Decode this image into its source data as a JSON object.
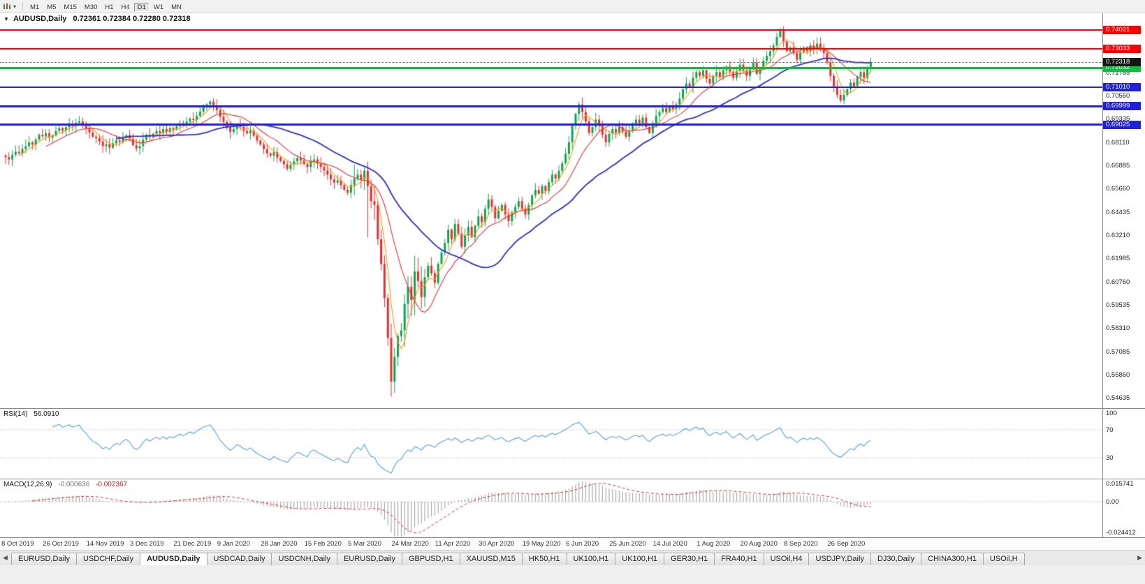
{
  "toolbar": {
    "timeframes": [
      "M1",
      "M5",
      "M15",
      "M30",
      "H1",
      "H4",
      "D1",
      "W1",
      "MN"
    ],
    "active_timeframe": "D1"
  },
  "chart": {
    "header": {
      "dropdown_caret": "▼",
      "symbol": "AUDUSD,Daily",
      "ohlc": "0.72361 0.72384 0.72280 0.72318"
    }
  },
  "chart_data": {
    "type": "candlestick",
    "symbol": "AUDUSD",
    "period": "Daily",
    "ohlc_display": {
      "open": "0.72361",
      "high": "0.72384",
      "low": "0.72280",
      "close": "0.72318"
    },
    "y_axis": {
      "max": 0.749,
      "min": 0.541,
      "ticks": [
        "0.73010",
        "0.71785",
        "0.70560",
        "0.69335",
        "0.68110",
        "0.66885",
        "0.65660",
        "0.64435",
        "0.63210",
        "0.61985",
        "0.60760",
        "0.59535",
        "0.58310",
        "0.57085",
        "0.55860",
        "0.54635"
      ]
    },
    "x_axis": {
      "labels": [
        {
          "text": "8 Oct 2019",
          "bar": 1
        },
        {
          "text": "26 Oct 2019",
          "bar": 14
        },
        {
          "text": "14 Nov 2019",
          "bar": 27
        },
        {
          "text": "3 Dec 2019",
          "bar": 40
        },
        {
          "text": "21 Dec 2019",
          "bar": 53
        },
        {
          "text": "9 Jan 2020",
          "bar": 66
        },
        {
          "text": "28 Jan 2020",
          "bar": 79
        },
        {
          "text": "15 Feb 2020",
          "bar": 92
        },
        {
          "text": "5 Mar 2020",
          "bar": 105
        },
        {
          "text": "24 Mar 2020",
          "bar": 118
        },
        {
          "text": "11 Apr 2020",
          "bar": 131
        },
        {
          "text": "30 Apr 2020",
          "bar": 144
        },
        {
          "text": "19 May 2020",
          "bar": 157
        },
        {
          "text": "6 Jun 2020",
          "bar": 170
        },
        {
          "text": "25 Jun 2020",
          "bar": 183
        },
        {
          "text": "14 Jul 2020",
          "bar": 196
        },
        {
          "text": "1 Aug 2020",
          "bar": 209
        },
        {
          "text": "20 Aug 2020",
          "bar": 222
        },
        {
          "text": "8 Sep 2020",
          "bar": 235
        },
        {
          "text": "26 Sep 2020",
          "bar": 248
        }
      ]
    },
    "closes": [
      0.6732,
      0.672,
      0.6745,
      0.676,
      0.6752,
      0.6775,
      0.679,
      0.681,
      0.6798,
      0.6825,
      0.685,
      0.6842,
      0.6858,
      0.6835,
      0.6846,
      0.687,
      0.6885,
      0.6872,
      0.689,
      0.6905,
      0.6895,
      0.6912,
      0.692,
      0.6898,
      0.6885,
      0.6862,
      0.684,
      0.6832,
      0.6815,
      0.679,
      0.68,
      0.6782,
      0.6805,
      0.682,
      0.6812,
      0.6835,
      0.6848,
      0.683,
      0.6795,
      0.6778,
      0.679,
      0.6825,
      0.685,
      0.6838,
      0.6855,
      0.687,
      0.6858,
      0.688,
      0.6865,
      0.6885,
      0.6878,
      0.6895,
      0.691,
      0.6902,
      0.692,
      0.6935,
      0.6928,
      0.695,
      0.6972,
      0.6995,
      0.701,
      0.7025,
      0.7005,
      0.698,
      0.6945,
      0.6918,
      0.689,
      0.6865,
      0.688,
      0.6905,
      0.6892,
      0.687,
      0.6858,
      0.6872,
      0.6845,
      0.682,
      0.6798,
      0.6775,
      0.6752,
      0.674,
      0.6758,
      0.673,
      0.6712,
      0.6695,
      0.667,
      0.6692,
      0.671,
      0.6728,
      0.6715,
      0.6695,
      0.668,
      0.6712,
      0.672,
      0.6698,
      0.668,
      0.6662,
      0.664,
      0.6615,
      0.6598,
      0.661,
      0.6585,
      0.656,
      0.6545,
      0.6585,
      0.662,
      0.664,
      0.6615,
      0.666,
      0.658,
      0.65,
      0.648,
      0.63,
      0.617,
      0.599,
      0.578,
      0.555,
      0.568,
      0.579,
      0.582,
      0.596,
      0.605,
      0.598,
      0.613,
      0.608,
      0.5995,
      0.61,
      0.616,
      0.612,
      0.607,
      0.617,
      0.623,
      0.628,
      0.635,
      0.63,
      0.638,
      0.633,
      0.626,
      0.632,
      0.6365,
      0.631,
      0.637,
      0.642,
      0.639,
      0.646,
      0.651,
      0.647,
      0.641,
      0.645,
      0.648,
      0.643,
      0.6395,
      0.644,
      0.647,
      0.65,
      0.646,
      0.643,
      0.648,
      0.653,
      0.656,
      0.654,
      0.658,
      0.6555,
      0.66,
      0.664,
      0.662,
      0.666,
      0.67,
      0.675,
      0.681,
      0.69,
      0.696,
      0.701,
      0.697,
      0.692,
      0.686,
      0.689,
      0.693,
      0.69,
      0.685,
      0.681,
      0.6855,
      0.688,
      0.686,
      0.689,
      0.6865,
      0.684,
      0.687,
      0.6905,
      0.693,
      0.691,
      0.694,
      0.689,
      0.686,
      0.691,
      0.695,
      0.697,
      0.699,
      0.697,
      0.7,
      0.6985,
      0.701,
      0.704,
      0.709,
      0.712,
      0.71,
      0.715,
      0.718,
      0.716,
      0.719,
      0.7145,
      0.712,
      0.716,
      0.718,
      0.7155,
      0.719,
      0.721,
      0.718,
      0.715,
      0.7185,
      0.722,
      0.719,
      0.716,
      0.7195,
      0.723,
      0.717,
      0.72,
      0.724,
      0.7265,
      0.729,
      0.732,
      0.7365,
      0.74,
      0.734,
      0.729,
      0.731,
      0.728,
      0.7245,
      0.7285,
      0.731,
      0.729,
      0.732,
      0.73,
      0.733,
      0.731,
      0.728,
      0.723,
      0.716,
      0.7105,
      0.706,
      0.703,
      0.706,
      0.709,
      0.7125,
      0.7105,
      0.7155,
      0.718,
      0.715,
      0.72,
      0.7232
    ],
    "wick_overrides": [
      {
        "bar": 108,
        "low": 0.631
      },
      {
        "bar": 115,
        "low": 0.547
      },
      {
        "bar": 231,
        "high": 0.7414
      }
    ],
    "horizontal_lines": [
      {
        "price": 0.74021,
        "label": "0.74021",
        "color": "#FF0000",
        "width": 2,
        "role": "resistance"
      },
      {
        "price": 0.73033,
        "label": "0.73033",
        "color": "#FF0000",
        "width": 2,
        "role": "resistance"
      },
      {
        "price": 0.72032,
        "label": "0.72032",
        "color": "#00C832",
        "width": 3,
        "role": "pivot"
      },
      {
        "price": 0.7101,
        "label": "0.71010",
        "color": "#2020DD",
        "width": 2,
        "role": "support"
      },
      {
        "price": 0.69999,
        "label": "0.69999",
        "color": "#2020DD",
        "width": 3,
        "role": "support"
      },
      {
        "price": 0.69025,
        "label": "0.69025",
        "color": "#2020DD",
        "width": 3,
        "role": "support"
      }
    ],
    "current_price": {
      "value": 0.72318,
      "label": "0.72318",
      "tag_color": "#151515"
    },
    "moving_averages": [
      {
        "period": 5,
        "color": "#FF9814",
        "width": 1.1
      },
      {
        "period": 13,
        "color": "#E03232",
        "width": 1.1
      },
      {
        "period": 34,
        "color": "#2B2BCF",
        "width": 1.8
      }
    ],
    "candle_up_color": "#0EA44C",
    "candle_down_color": "#E62E2E"
  },
  "indicators": {
    "rsi": {
      "name": "RSI(14)",
      "value": "56.0910",
      "color": "#53A0D9",
      "levels": [
        70,
        30
      ],
      "ticks": [
        {
          "text": "100",
          "v": 100
        },
        {
          "text": "70",
          "v": 70
        },
        {
          "text": "30",
          "v": 30
        }
      ],
      "range": [
        0,
        100
      ],
      "period": 14
    },
    "macd": {
      "name": "MACD(12,26,9)",
      "value_main": "-0.000636",
      "value_signal": "-0.002367",
      "histogram_color": "#9B9B9B",
      "signal_color": "#D42A2A",
      "fast": 12,
      "slow": 26,
      "signal": 9,
      "ticks": [
        {
          "text": "0.015741",
          "v": 0.015741
        },
        {
          "text": "0.00",
          "v": 0
        },
        {
          "text": "-0.024412",
          "v": -0.024412
        }
      ],
      "range": [
        -0.024412,
        0.015741
      ]
    }
  },
  "tabs": [
    "EURUSD,Daily",
    "USDCHF,Daily",
    "AUDUSD,Daily",
    "USDCAD,Daily",
    "USDCNH,Daily",
    "EURUSD,Daily",
    "GBPUSD,H1",
    "XAUUSD,M15",
    "HK50,H1",
    "UK100,H1",
    "UK100,H1",
    "GER30,H1",
    "FRA40,H1",
    "USOil,H4",
    "USDJPY,Daily",
    "DJ30,Daily",
    "CHINA300,H1",
    "USOil,H"
  ],
  "active_tab_index": 2,
  "tab_bar": {
    "scroll_left": "◀",
    "scroll_right": "▶"
  }
}
